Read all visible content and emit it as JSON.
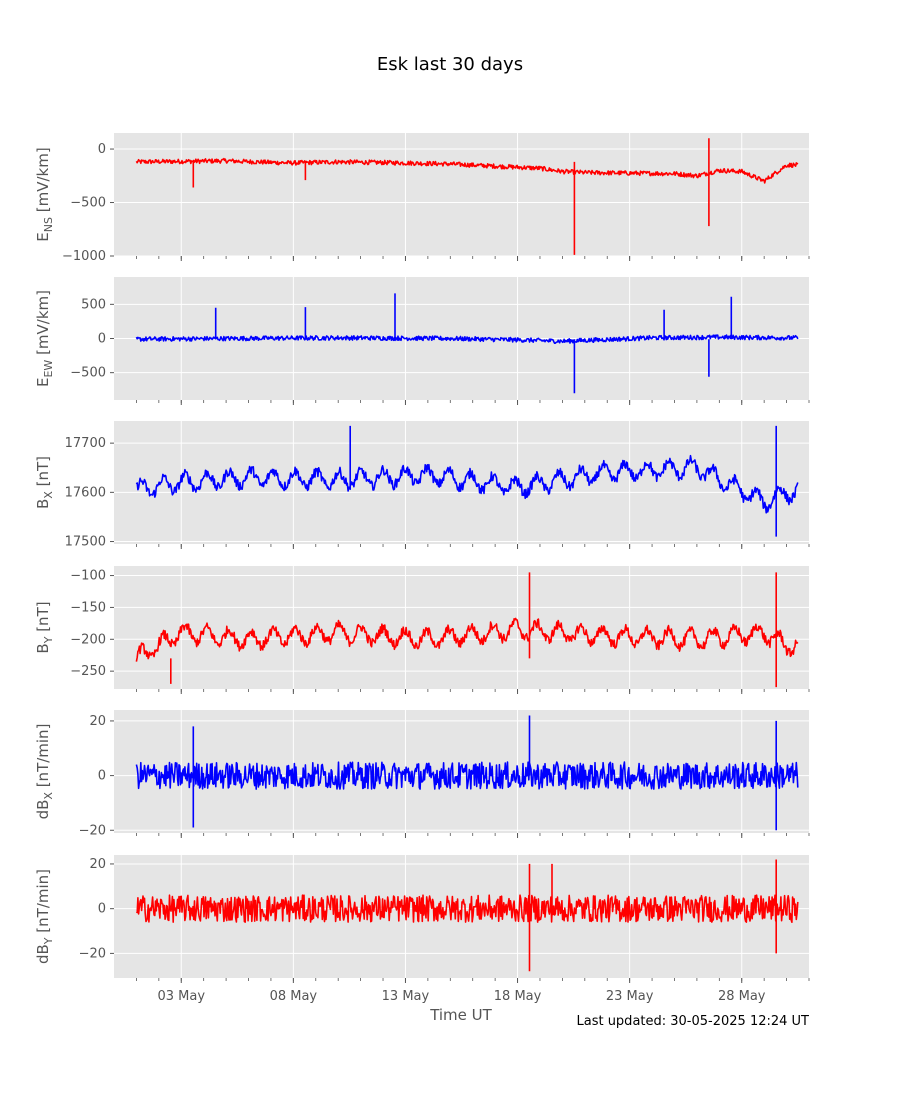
{
  "title": "Esk last 30 days",
  "footer": "Last updated: 30-05-2025 12:24 UT",
  "xlabel": "Time UT",
  "x_tick_labels": [
    "03 May",
    "08 May",
    "13 May",
    "18 May",
    "23 May",
    "28 May"
  ],
  "colors": {
    "panel_bg": "#e5e5e5",
    "grid": "#ffffff",
    "red": "#ff0000",
    "blue": "#0000ff",
    "tick_text": "#555555"
  },
  "chart_data": [
    {
      "type": "line",
      "ylabel_main": "E",
      "ylabel_sub": "NS",
      "ylabel_unit": " [mV/km]",
      "color": "red",
      "ylim": [
        -1000,
        150
      ],
      "yticks": [
        0,
        -500,
        -1000
      ],
      "ytick_labels": [
        "0",
        "−500",
        "−1000"
      ],
      "x": [
        "2025-05-01",
        "2025-05-03",
        "2025-05-05",
        "2025-05-07",
        "2025-05-08",
        "2025-05-10",
        "2025-05-13",
        "2025-05-15",
        "2025-05-17",
        "2025-05-19",
        "2025-05-20",
        "2025-05-21",
        "2025-05-23",
        "2025-05-25",
        "2025-05-26",
        "2025-05-27",
        "2025-05-28",
        "2025-05-29",
        "2025-05-30"
      ],
      "y": [
        -120,
        -115,
        -110,
        -125,
        -130,
        -120,
        -130,
        -140,
        -160,
        -180,
        -210,
        -220,
        -225,
        -230,
        -250,
        -200,
        -210,
        -300,
        -150
      ],
      "spikes": [
        [
          "2025-05-03",
          -360
        ],
        [
          "2025-05-08",
          -290
        ],
        [
          "2025-05-20",
          -990
        ],
        [
          "2025-05-26",
          -720
        ],
        [
          "2025-05-26",
          100
        ]
      ]
    },
    {
      "type": "line",
      "ylabel_main": "E",
      "ylabel_sub": "EW",
      "ylabel_unit": " [mV/km]",
      "color": "blue",
      "ylim": [
        -900,
        900
      ],
      "yticks": [
        500,
        0,
        -500
      ],
      "ytick_labels": [
        "500",
        "0",
        "−500"
      ],
      "x": [
        "2025-05-01",
        "2025-05-05",
        "2025-05-10",
        "2025-05-15",
        "2025-05-18",
        "2025-05-20",
        "2025-05-24",
        "2025-05-27",
        "2025-05-30"
      ],
      "y": [
        -10,
        0,
        10,
        0,
        -20,
        -40,
        10,
        20,
        10
      ],
      "spikes": [
        [
          "2025-05-04",
          450
        ],
        [
          "2025-05-08",
          460
        ],
        [
          "2025-05-12",
          660
        ],
        [
          "2025-05-20",
          -800
        ],
        [
          "2025-05-24",
          420
        ],
        [
          "2025-05-26",
          -560
        ],
        [
          "2025-05-27",
          610
        ]
      ]
    },
    {
      "type": "line",
      "ylabel_main": "B",
      "ylabel_sub": "X",
      "ylabel_unit": " [nT]",
      "color": "blue",
      "ylim": [
        17495,
        17745
      ],
      "yticks": [
        17700,
        17600,
        17500
      ],
      "ytick_labels": [
        "17700",
        "17600",
        "17500"
      ],
      "x": [
        "2025-05-01",
        "2025-05-03",
        "2025-05-06",
        "2025-05-10",
        "2025-05-14",
        "2025-05-18",
        "2025-05-22",
        "2025-05-26",
        "2025-05-29",
        "2025-05-30"
      ],
      "y": [
        17605,
        17620,
        17630,
        17625,
        17635,
        17610,
        17640,
        17650,
        17580,
        17600
      ],
      "spikes": [
        [
          "2025-05-10",
          17735
        ],
        [
          "2025-05-29",
          17735
        ],
        [
          "2025-05-29",
          17510
        ]
      ]
    },
    {
      "type": "line",
      "ylabel_main": "B",
      "ylabel_sub": "Y",
      "ylabel_unit": " [nT]",
      "color": "red",
      "ylim": [
        -278,
        -85
      ],
      "yticks": [
        -100,
        -150,
        -200,
        -250
      ],
      "ytick_labels": [
        "−100",
        "−150",
        "−200",
        "−250"
      ],
      "x": [
        "2025-05-01",
        "2025-05-03",
        "2025-05-06",
        "2025-05-10",
        "2025-05-14",
        "2025-05-18",
        "2025-05-22",
        "2025-05-26",
        "2025-05-29",
        "2025-05-30"
      ],
      "y": [
        -230,
        -190,
        -200,
        -190,
        -200,
        -185,
        -195,
        -200,
        -190,
        -210
      ],
      "spikes": [
        [
          "2025-05-18",
          -95
        ],
        [
          "2025-05-29",
          -95
        ],
        [
          "2025-05-29",
          -275
        ],
        [
          "2025-05-02",
          -270
        ]
      ]
    },
    {
      "type": "line",
      "ylabel_main": "dB",
      "ylabel_sub": "X",
      "ylabel_unit": " [nT/min]",
      "color": "blue",
      "ylim": [
        -21,
        24
      ],
      "yticks": [
        20,
        0,
        -20
      ],
      "ytick_labels": [
        "20",
        "0",
        "−20"
      ],
      "x": [
        "2025-05-01",
        "2025-05-30"
      ],
      "y": [
        0,
        0
      ],
      "spikes": [
        [
          "2025-05-03",
          18
        ],
        [
          "2025-05-03",
          -19
        ],
        [
          "2025-05-18",
          22
        ],
        [
          "2025-05-29",
          20
        ],
        [
          "2025-05-29",
          -20
        ]
      ]
    },
    {
      "type": "line",
      "ylabel_main": "dB",
      "ylabel_sub": "Y",
      "ylabel_unit": " [nT/min]",
      "color": "red",
      "ylim": [
        -31,
        24
      ],
      "yticks": [
        20,
        0,
        -20
      ],
      "ytick_labels": [
        "20",
        "0",
        "−20"
      ],
      "x": [
        "2025-05-01",
        "2025-05-30"
      ],
      "y": [
        0,
        0
      ],
      "spikes": [
        [
          "2025-05-18",
          -28
        ],
        [
          "2025-05-18",
          20
        ],
        [
          "2025-05-19",
          20
        ],
        [
          "2025-05-29",
          22
        ],
        [
          "2025-05-29",
          -20
        ]
      ]
    }
  ]
}
